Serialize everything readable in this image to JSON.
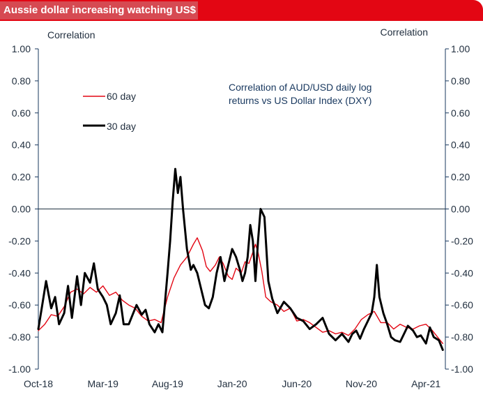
{
  "header": {
    "title": "Aussie dollar increasing watching US$"
  },
  "colors": {
    "title_band": "#e30613",
    "title_box": "#d64a52",
    "series_60": "#e30613",
    "series_30": "#000000",
    "axis": "#17375e",
    "zero_line": "#1f3040"
  },
  "chart_data": {
    "type": "line",
    "title": "Correlation of AUD/USD daily log returns vs US Dollar Index (DXY)",
    "annotation": [
      "Correlation of AUD/USD daily log",
      "returns vs US Dollar Index (DXY)"
    ],
    "ylabel_left": "Correlation",
    "ylabel_right": "Correlation",
    "ylim": [
      -1.0,
      1.0
    ],
    "yticks": [
      "1.00",
      "0.80",
      "0.60",
      "0.40",
      "0.20",
      "0.00",
      "-0.20",
      "-0.40",
      "-0.60",
      "-0.80",
      "-1.00"
    ],
    "yticks_right": [
      "1.00",
      "0.80",
      "0.60",
      "0.40",
      "0.20",
      "0.00",
      "-0.20",
      "-0.40",
      "-0.60",
      "-0.80",
      "-1.00"
    ],
    "xlim": [
      0,
      31.5
    ],
    "xticks": [
      {
        "label": "Oct-18",
        "t": 0
      },
      {
        "label": "Mar-19",
        "t": 5
      },
      {
        "label": "Aug-19",
        "t": 10
      },
      {
        "label": "Jan-20",
        "t": 15
      },
      {
        "label": "Jun-20",
        "t": 20
      },
      {
        "label": "Nov-20",
        "t": 25
      },
      {
        "label": "Apr-21",
        "t": 30
      }
    ],
    "legend": [
      {
        "label": "60 day",
        "series": 0
      },
      {
        "label": "30 day",
        "series": 1
      }
    ],
    "series": [
      {
        "name": "60 day",
        "x": [
          0,
          0.5,
          1,
          1.5,
          2,
          2.5,
          3,
          3.5,
          4,
          4.5,
          5,
          5.5,
          6,
          6.5,
          7,
          7.5,
          8,
          8.5,
          9,
          9.5,
          10,
          10.5,
          11,
          11.5,
          12,
          12.3,
          12.7,
          13,
          13.3,
          13.7,
          14,
          14.3,
          14.7,
          15,
          15.3,
          15.7,
          16,
          16.3,
          16.6,
          16.8,
          17,
          17.3,
          17.6,
          18,
          18.5,
          19,
          19.5,
          20,
          20.5,
          21,
          21.5,
          22,
          22.5,
          23,
          23.5,
          24,
          24.5,
          25,
          25.5,
          26,
          26.5,
          27,
          27.5,
          28,
          28.5,
          29,
          29.5,
          30,
          30.5,
          31,
          31.3
        ],
        "values": [
          -0.76,
          -0.72,
          -0.66,
          -0.67,
          -0.61,
          -0.52,
          -0.5,
          -0.53,
          -0.49,
          -0.52,
          -0.48,
          -0.54,
          -0.52,
          -0.57,
          -0.6,
          -0.62,
          -0.67,
          -0.7,
          -0.69,
          -0.71,
          -0.55,
          -0.43,
          -0.35,
          -0.3,
          -0.22,
          -0.18,
          -0.26,
          -0.36,
          -0.39,
          -0.35,
          -0.3,
          -0.34,
          -0.42,
          -0.44,
          -0.37,
          -0.4,
          -0.33,
          -0.34,
          -0.27,
          -0.22,
          -0.27,
          -0.39,
          -0.55,
          -0.58,
          -0.6,
          -0.64,
          -0.62,
          -0.7,
          -0.69,
          -0.71,
          -0.74,
          -0.77,
          -0.76,
          -0.78,
          -0.77,
          -0.79,
          -0.75,
          -0.69,
          -0.66,
          -0.64,
          -0.71,
          -0.71,
          -0.75,
          -0.72,
          -0.74,
          -0.75,
          -0.73,
          -0.72,
          -0.76,
          -0.81,
          -0.84
        ]
      },
      {
        "name": "30 day",
        "x": [
          0,
          0.3,
          0.6,
          1,
          1.3,
          1.6,
          2,
          2.3,
          2.6,
          3,
          3.3,
          3.6,
          4,
          4.3,
          4.6,
          5,
          5.3,
          5.6,
          6,
          6.3,
          6.6,
          7,
          7.3,
          7.6,
          8,
          8.3,
          8.6,
          9,
          9.3,
          9.6,
          10,
          10.2,
          10.4,
          10.6,
          10.8,
          11,
          11.2,
          11.5,
          11.8,
          12,
          12.3,
          12.6,
          12.9,
          13.2,
          13.5,
          13.8,
          14.1,
          14.4,
          14.7,
          15,
          15.3,
          15.6,
          15.8,
          16,
          16.2,
          16.4,
          16.6,
          16.8,
          17,
          17.2,
          17.5,
          17.8,
          18.1,
          18.5,
          19,
          19.5,
          20,
          20.5,
          21,
          21.5,
          22,
          22.5,
          23,
          23.5,
          24,
          24.3,
          24.6,
          24.9,
          25.2,
          25.5,
          25.8,
          26,
          26.2,
          26.4,
          26.7,
          27,
          27.3,
          27.6,
          28,
          28.3,
          28.6,
          29,
          29.3,
          29.6,
          30,
          30.3,
          30.6,
          31,
          31.3
        ],
        "values": [
          -0.75,
          -0.6,
          -0.45,
          -0.62,
          -0.55,
          -0.72,
          -0.65,
          -0.48,
          -0.68,
          -0.42,
          -0.6,
          -0.4,
          -0.46,
          -0.34,
          -0.5,
          -0.55,
          -0.6,
          -0.72,
          -0.65,
          -0.54,
          -0.72,
          -0.72,
          -0.66,
          -0.6,
          -0.66,
          -0.63,
          -0.72,
          -0.77,
          -0.72,
          -0.77,
          -0.4,
          -0.2,
          0.05,
          0.25,
          0.1,
          0.2,
          0.0,
          -0.25,
          -0.38,
          -0.35,
          -0.4,
          -0.5,
          -0.6,
          -0.62,
          -0.55,
          -0.4,
          -0.3,
          -0.45,
          -0.35,
          -0.25,
          -0.3,
          -0.38,
          -0.45,
          -0.4,
          -0.3,
          -0.1,
          -0.2,
          -0.45,
          -0.2,
          0.0,
          -0.05,
          -0.45,
          -0.56,
          -0.65,
          -0.58,
          -0.62,
          -0.68,
          -0.7,
          -0.75,
          -0.72,
          -0.68,
          -0.78,
          -0.82,
          -0.78,
          -0.83,
          -0.78,
          -0.76,
          -0.81,
          -0.75,
          -0.7,
          -0.65,
          -0.55,
          -0.35,
          -0.55,
          -0.65,
          -0.72,
          -0.8,
          -0.82,
          -0.83,
          -0.78,
          -0.73,
          -0.76,
          -0.8,
          -0.79,
          -0.84,
          -0.74,
          -0.8,
          -0.82,
          -0.88
        ]
      }
    ]
  }
}
